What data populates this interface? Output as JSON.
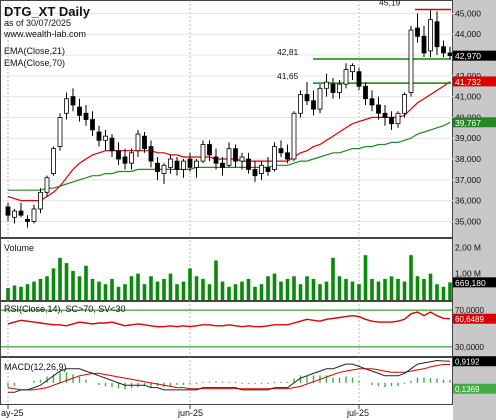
{
  "header": {
    "title": "DTG_XT Daily",
    "subtitle": "as of 30/07/2025",
    "site": "www.wealth-lab.com",
    "ema21_label": "EMA(Close,21)",
    "ema70_label": "EMA(Close,70)"
  },
  "colors": {
    "up": "#ffffff",
    "down": "#000000",
    "ema21": "#dd0000",
    "ema70": "#228822",
    "volume": "#0a8a0a",
    "rsi": "#dd0000",
    "macd": "#222222",
    "signal": "#dd0000",
    "hist": "#44aa44",
    "axis_bg": "#c8c8c8",
    "grid": "#e4e4e4"
  },
  "price_axis": {
    "ticks": [
      "45,000",
      "44,000",
      "43,000",
      "42,000",
      "41,000",
      "40,000",
      "39,000",
      "38,000",
      "37,000",
      "36,000",
      "35,000"
    ],
    "last_price": "42,970",
    "ema21_value": "41,732",
    "ema70_value": "39,767"
  },
  "levels": [
    {
      "label": "45,19",
      "value": 45.19,
      "color": "#dd0000"
    },
    {
      "label": "42,81",
      "value": 42.81,
      "color": "#0a8a0a"
    },
    {
      "label": "41,65",
      "value": 41.65,
      "color": "#0a8a0a"
    }
  ],
  "volume_pane": {
    "label": "Volume",
    "axis_labels": [
      "2,00 M",
      "1,00 M"
    ],
    "last_value": "669,180"
  },
  "rsi_pane": {
    "label": "RSI(Close,14), SC>70, SV<30",
    "axis_labels": [
      "70,0000",
      "30,0000"
    ],
    "last_value": "60,6489"
  },
  "macd_pane": {
    "label": "MACD(12,26,9)",
    "last_macd": "0,9192",
    "last_hist": "0,1369"
  },
  "x_axis": {
    "labels": [
      "ay-25",
      "jun-25",
      "jul-25"
    ]
  },
  "chart_data": {
    "type": "candlestick",
    "ohlc": [
      [
        35.7,
        35.9,
        35.0,
        35.3
      ],
      [
        35.2,
        35.6,
        34.9,
        35.5
      ],
      [
        35.5,
        35.9,
        35.2,
        35.3
      ],
      [
        35.1,
        35.3,
        34.7,
        35.0
      ],
      [
        35.0,
        35.8,
        34.9,
        35.6
      ],
      [
        35.6,
        36.6,
        35.4,
        36.4
      ],
      [
        36.4,
        37.2,
        36.2,
        37.1
      ],
      [
        37.3,
        38.6,
        37.2,
        38.5
      ],
      [
        38.6,
        40.2,
        38.4,
        40.0
      ],
      [
        40.2,
        41.2,
        39.9,
        40.9
      ],
      [
        41.0,
        41.4,
        40.3,
        40.6
      ],
      [
        40.5,
        40.9,
        39.8,
        40.1
      ],
      [
        40.2,
        40.6,
        39.6,
        39.9
      ],
      [
        39.9,
        40.3,
        39.1,
        39.4
      ],
      [
        39.3,
        39.6,
        38.6,
        38.9
      ],
      [
        38.9,
        39.4,
        38.4,
        39.1
      ],
      [
        39.0,
        39.2,
        38.1,
        38.4
      ],
      [
        38.4,
        38.8,
        37.7,
        38.0
      ],
      [
        38.1,
        38.5,
        37.5,
        37.8
      ],
      [
        37.8,
        38.5,
        37.5,
        38.3
      ],
      [
        38.4,
        39.4,
        38.1,
        39.2
      ],
      [
        39.1,
        39.3,
        38.3,
        38.5
      ],
      [
        38.6,
        38.9,
        37.6,
        37.9
      ],
      [
        37.8,
        38.1,
        37.0,
        37.4
      ],
      [
        37.3,
        37.8,
        36.8,
        37.7
      ],
      [
        37.6,
        38.2,
        37.3,
        38.0
      ],
      [
        37.9,
        38.1,
        37.2,
        37.5
      ],
      [
        37.5,
        38.0,
        37.1,
        37.9
      ],
      [
        38.0,
        38.3,
        37.4,
        37.6
      ],
      [
        37.6,
        38.0,
        37.1,
        37.9
      ],
      [
        37.9,
        38.9,
        37.8,
        38.7
      ],
      [
        38.7,
        38.9,
        37.9,
        38.2
      ],
      [
        38.1,
        38.5,
        37.5,
        37.8
      ],
      [
        37.8,
        38.1,
        37.2,
        37.6
      ],
      [
        37.7,
        38.8,
        37.6,
        38.5
      ],
      [
        38.5,
        38.7,
        37.6,
        37.9
      ],
      [
        37.9,
        38.3,
        37.5,
        38.1
      ],
      [
        38.0,
        38.3,
        37.3,
        37.5
      ],
      [
        37.5,
        37.9,
        36.9,
        37.2
      ],
      [
        37.3,
        37.9,
        37.0,
        37.7
      ],
      [
        37.6,
        38.1,
        37.2,
        37.4
      ],
      [
        37.5,
        38.8,
        37.4,
        38.6
      ],
      [
        38.5,
        38.9,
        38.1,
        38.3
      ],
      [
        38.3,
        38.7,
        37.8,
        38.0
      ],
      [
        38.0,
        40.3,
        37.9,
        40.2
      ],
      [
        40.2,
        41.3,
        40.0,
        41.1
      ],
      [
        41.1,
        41.7,
        40.6,
        40.8
      ],
      [
        40.8,
        41.3,
        40.1,
        40.4
      ],
      [
        40.4,
        41.6,
        40.2,
        41.4
      ],
      [
        41.4,
        42.1,
        41.0,
        41.7
      ],
      [
        41.6,
        41.9,
        40.9,
        41.2
      ],
      [
        41.2,
        41.8,
        40.9,
        41.6
      ],
      [
        41.6,
        42.6,
        41.4,
        42.3
      ],
      [
        42.2,
        42.6,
        41.8,
        42.5
      ],
      [
        42.2,
        42.4,
        41.3,
        41.5
      ],
      [
        41.5,
        41.7,
        40.6,
        40.9
      ],
      [
        40.9,
        41.3,
        40.3,
        40.6
      ],
      [
        40.6,
        41.0,
        39.9,
        40.2
      ],
      [
        40.2,
        40.6,
        39.6,
        40.0
      ],
      [
        40.0,
        40.3,
        39.4,
        39.7
      ],
      [
        39.7,
        40.3,
        39.5,
        40.2
      ],
      [
        40.2,
        41.2,
        40.0,
        41.1
      ],
      [
        41.2,
        44.4,
        41.0,
        44.2
      ],
      [
        44.3,
        45.0,
        43.6,
        43.9
      ],
      [
        43.9,
        44.4,
        42.9,
        43.1
      ],
      [
        43.2,
        45.19,
        42.9,
        44.7
      ],
      [
        44.6,
        45.1,
        43.0,
        43.4
      ],
      [
        43.4,
        43.7,
        42.9,
        43.1
      ],
      [
        43.1,
        43.4,
        42.8,
        42.97
      ]
    ],
    "ema21": [
      36.2,
      36.1,
      36.0,
      36.0,
      36.0,
      36.0,
      36.2,
      36.4,
      36.7,
      37.1,
      37.5,
      37.8,
      38.0,
      38.2,
      38.3,
      38.4,
      38.4,
      38.4,
      38.4,
      38.4,
      38.4,
      38.4,
      38.4,
      38.3,
      38.3,
      38.2,
      38.2,
      38.1,
      38.1,
      38.1,
      38.1,
      38.1,
      38.0,
      38.0,
      38.0,
      38.0,
      37.9,
      37.9,
      37.9,
      37.9,
      37.9,
      37.9,
      37.9,
      37.9,
      38.1,
      38.3,
      38.4,
      38.6,
      38.7,
      38.9,
      39.1,
      39.3,
      39.5,
      39.7,
      39.8,
      39.9,
      40.0,
      40.0,
      40.0,
      40.0,
      40.0,
      40.1,
      40.4,
      40.7,
      40.9,
      41.1,
      41.3,
      41.5,
      41.73
    ],
    "ema70": [
      36.5,
      36.5,
      36.5,
      36.5,
      36.5,
      36.5,
      36.6,
      36.6,
      36.7,
      36.8,
      36.9,
      37.0,
      37.1,
      37.2,
      37.2,
      37.3,
      37.3,
      37.4,
      37.4,
      37.4,
      37.5,
      37.5,
      37.5,
      37.5,
      37.5,
      37.5,
      37.5,
      37.5,
      37.5,
      37.6,
      37.6,
      37.6,
      37.6,
      37.6,
      37.6,
      37.6,
      37.6,
      37.6,
      37.6,
      37.6,
      37.6,
      37.7,
      37.7,
      37.7,
      37.8,
      37.9,
      37.9,
      38.0,
      38.1,
      38.2,
      38.3,
      38.3,
      38.4,
      38.5,
      38.5,
      38.6,
      38.6,
      38.7,
      38.7,
      38.8,
      38.8,
      38.9,
      39.0,
      39.2,
      39.3,
      39.4,
      39.5,
      39.6,
      39.767
    ],
    "volume": [
      0.45,
      0.55,
      0.5,
      0.6,
      0.7,
      0.8,
      0.9,
      1.2,
      1.6,
      1.4,
      1.1,
      0.9,
      1.3,
      0.8,
      0.7,
      0.6,
      0.8,
      0.5,
      0.6,
      0.9,
      1.0,
      0.6,
      0.9,
      0.7,
      0.8,
      1.0,
      0.6,
      0.7,
      1.2,
      0.9,
      0.8,
      0.6,
      1.5,
      0.7,
      0.5,
      0.6,
      0.7,
      0.8,
      0.5,
      0.6,
      0.9,
      1.0,
      0.7,
      0.8,
      0.9,
      0.6,
      0.9,
      0.8,
      0.6,
      0.7,
      1.6,
      0.9,
      0.8,
      0.7,
      0.6,
      1.7,
      0.8,
      0.7,
      0.8,
      0.9,
      0.8,
      0.7,
      1.7,
      0.9,
      0.8,
      1.0,
      0.6,
      0.5,
      0.67
    ],
    "rsi": [
      55,
      57,
      59,
      58,
      57,
      56,
      55,
      54,
      54,
      53,
      55,
      57,
      56,
      55,
      56,
      56,
      57,
      55,
      53,
      54,
      55,
      54,
      53,
      52,
      52,
      53,
      52,
      53,
      52,
      53,
      54,
      54,
      53,
      53,
      54,
      53,
      52,
      53,
      52,
      52,
      53,
      54,
      54,
      54,
      56,
      58,
      60,
      59,
      58,
      60,
      61,
      62,
      63,
      64,
      63,
      60,
      58,
      57,
      57,
      57,
      58,
      60,
      66,
      68,
      64,
      68,
      64,
      61,
      60.65
    ],
    "macd": [
      -0.4,
      -0.4,
      -0.3,
      -0.3,
      -0.2,
      -0.1,
      0.1,
      0.3,
      0.5,
      0.6,
      0.6,
      0.6,
      0.5,
      0.4,
      0.3,
      0.2,
      0.1,
      0.0,
      -0.1,
      -0.1,
      -0.1,
      -0.1,
      -0.2,
      -0.2,
      -0.3,
      -0.3,
      -0.3,
      -0.3,
      -0.3,
      -0.3,
      -0.2,
      -0.2,
      -0.2,
      -0.2,
      -0.2,
      -0.2,
      -0.3,
      -0.3,
      -0.3,
      -0.3,
      -0.3,
      -0.2,
      -0.2,
      -0.2,
      0.0,
      0.2,
      0.3,
      0.4,
      0.5,
      0.6,
      0.6,
      0.7,
      0.8,
      0.8,
      0.7,
      0.6,
      0.5,
      0.4,
      0.3,
      0.3,
      0.3,
      0.4,
      0.6,
      0.8,
      0.85,
      0.9,
      0.95,
      0.93,
      0.92
    ],
    "signal": [
      -0.2,
      -0.25,
      -0.3,
      -0.3,
      -0.3,
      -0.25,
      -0.2,
      -0.1,
      0.0,
      0.1,
      0.2,
      0.3,
      0.35,
      0.4,
      0.4,
      0.35,
      0.3,
      0.25,
      0.2,
      0.15,
      0.1,
      0.05,
      0.0,
      -0.05,
      -0.1,
      -0.15,
      -0.2,
      -0.2,
      -0.25,
      -0.25,
      -0.25,
      -0.25,
      -0.25,
      -0.25,
      -0.25,
      -0.25,
      -0.25,
      -0.25,
      -0.25,
      -0.25,
      -0.25,
      -0.25,
      -0.25,
      -0.25,
      -0.2,
      -0.15,
      -0.05,
      0.05,
      0.15,
      0.25,
      0.35,
      0.45,
      0.5,
      0.55,
      0.6,
      0.6,
      0.6,
      0.55,
      0.5,
      0.45,
      0.45,
      0.45,
      0.5,
      0.55,
      0.6,
      0.68,
      0.74,
      0.78,
      0.78
    ],
    "x_label_index": [
      0,
      28,
      54
    ],
    "y_range": [
      34.3,
      45.55
    ]
  }
}
